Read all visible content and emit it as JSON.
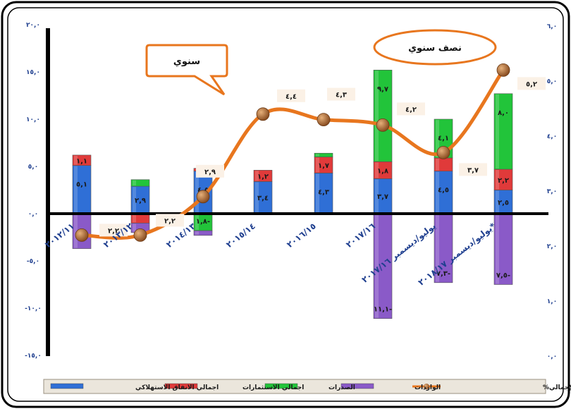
{
  "chart_data": {
    "type": "bar",
    "categories": [
      "٢٠١٢/١١",
      "٢٠١٣/١٢",
      "٢٠١٤/١٣",
      "٢٠١٥/١٤",
      "٢٠١٦/١٥",
      "٢٠١٧/١٦",
      "يوليو/ديسمبر ٢٠١٧/١٦",
      "يوليو/ديسمبر ٢٠١٨/١٧*"
    ],
    "ylim_left": [
      -15,
      20
    ],
    "ylim_right": [
      0,
      6
    ],
    "yticks_left": [
      "٢٠,٠",
      "١٥,٠",
      "١٠,٠",
      "٥,٠",
      "٠,٠",
      "-٥,٠",
      "-١٠,٠",
      "-١٥,٠"
    ],
    "yticks_right": [
      "٦,٠",
      "٥,٠",
      "٤,٠",
      "٣,٠",
      "٢,٠",
      "١,٠",
      "٠,٠"
    ],
    "series": [
      {
        "name": "اجمالي الانفاق الاستهلاكي",
        "color": "#2f6fd6",
        "values": [
          5.1,
          2.9,
          4.5,
          3.4,
          4.3,
          3.7,
          4.5,
          2.5
        ],
        "labels": [
          "٥,١",
          "٢,٩",
          "٤,٥",
          "٣,٤",
          "٤,٣",
          "٣,٧",
          "٤,٥",
          "٢,٥"
        ]
      },
      {
        "name": "اجمالي الاستثمارات",
        "color": "#e03a3a",
        "values": [
          1.1,
          -1.0,
          0.3,
          1.2,
          1.7,
          1.8,
          1.4,
          2.2
        ],
        "labels": [
          "١,١",
          "",
          "",
          "١,٢",
          "١,٧",
          "١,٨",
          "",
          "٢,٢"
        ]
      },
      {
        "name": "الصدرات",
        "color": "#22c43a",
        "values": [
          0.0,
          0.7,
          -1.8,
          0.0,
          0.4,
          9.7,
          4.1,
          8.0
        ],
        "labels": [
          "",
          "",
          "١,٨-",
          "",
          "",
          "٩,٧",
          "٤,١",
          "٨,٠"
        ]
      },
      {
        "name": "الواردات",
        "color": "#8a5ac8",
        "values": [
          -3.7,
          -1.0,
          -0.5,
          0.0,
          0.0,
          -11.1,
          -7.3,
          -7.5
        ],
        "labels": [
          "",
          "",
          "",
          "",
          "",
          "١١,١-",
          "٧,٣-",
          "٧,٥-"
        ]
      }
    ],
    "line": {
      "name": "معدل نمو الناتج المحلي الإجمالي%",
      "color": "#e8761e",
      "values": [
        2.2,
        2.2,
        2.9,
        4.4,
        4.3,
        4.2,
        3.7,
        5.2
      ],
      "labels": [
        "٢,٢",
        "٢,٢",
        "٢,٩",
        "٤,٤",
        "٤,٣",
        "٤,٢",
        "٣,٧",
        "٥,٢"
      ]
    },
    "annotations": [
      "سنوي",
      "نصف سنوي"
    ],
    "legend_position": "bottom"
  }
}
